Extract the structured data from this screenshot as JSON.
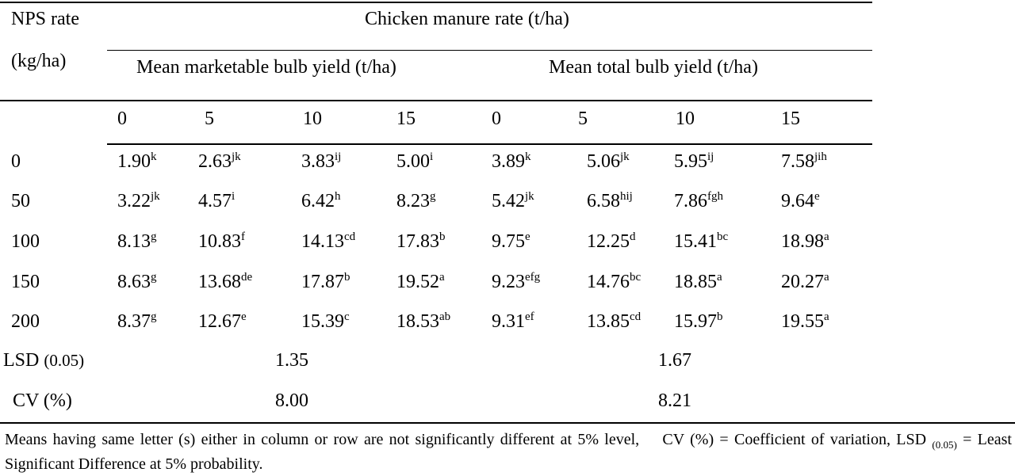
{
  "header": {
    "nps_rate_line1": "NPS rate",
    "nps_rate_line2": "(kg/ha)",
    "chicken_manure": "Chicken manure rate (t/ha)",
    "marketable": "Mean marketable bulb yield (t/ha)",
    "total": "Mean total bulb yield (t/ha)",
    "cm_levels": [
      "0",
      "5",
      "10",
      "15",
      "0",
      "5",
      "10",
      "15"
    ]
  },
  "rows": [
    {
      "nps": "0",
      "cells": [
        {
          "v": "1.90",
          "s": "k"
        },
        {
          "v": "2.63",
          "s": "jk"
        },
        {
          "v": "3.83",
          "s": "ij"
        },
        {
          "v": "5.00",
          "s": "i"
        },
        {
          "v": "3.89",
          "s": "k"
        },
        {
          "v": "5.06",
          "s": "jk"
        },
        {
          "v": "5.95",
          "s": "ij"
        },
        {
          "v": "7.58",
          "s": "jih"
        }
      ]
    },
    {
      "nps": "50",
      "cells": [
        {
          "v": "3.22",
          "s": "jk"
        },
        {
          "v": "4.57",
          "s": "i"
        },
        {
          "v": "6.42",
          "s": "h"
        },
        {
          "v": "8.23",
          "s": "g"
        },
        {
          "v": "5.42",
          "s": "jk"
        },
        {
          "v": "6.58",
          "s": "hij"
        },
        {
          "v": "7.86",
          "s": "fgh"
        },
        {
          "v": "9.64",
          "s": "e"
        }
      ]
    },
    {
      "nps": "100",
      "cells": [
        {
          "v": "8.13",
          "s": "g"
        },
        {
          "v": "10.83",
          "s": "f"
        },
        {
          "v": "14.13",
          "s": "cd"
        },
        {
          "v": "17.83",
          "s": "b"
        },
        {
          "v": "9.75",
          "s": "e"
        },
        {
          "v": "12.25",
          "s": "d"
        },
        {
          "v": "15.41",
          "s": "bc"
        },
        {
          "v": "18.98",
          "s": "a"
        }
      ]
    },
    {
      "nps": "150",
      "cells": [
        {
          "v": "8.63",
          "s": "g"
        },
        {
          "v": "13.68",
          "s": "de"
        },
        {
          "v": "17.87",
          "s": "b"
        },
        {
          "v": "19.52",
          "s": "a"
        },
        {
          "v": "9.23",
          "s": "efg"
        },
        {
          "v": "14.76",
          "s": "bc"
        },
        {
          "v": "18.85",
          "s": "a"
        },
        {
          "v": "20.27",
          "s": "a"
        }
      ]
    },
    {
      "nps": "200",
      "cells": [
        {
          "v": "8.37",
          "s": "g"
        },
        {
          "v": "12.67",
          "s": "e"
        },
        {
          "v": "15.39",
          "s": "c"
        },
        {
          "v": "18.53",
          "s": "ab"
        },
        {
          "v": "9.31",
          "s": "ef"
        },
        {
          "v": "13.85",
          "s": "cd"
        },
        {
          "v": "15.97",
          "s": "b"
        },
        {
          "v": "19.55",
          "s": "a"
        }
      ]
    }
  ],
  "lsd": {
    "label": "LSD",
    "label_sub": "(0.05)",
    "marketable": "1.35",
    "total": "1.67"
  },
  "cv": {
    "label": "CV (%)",
    "marketable": "8.00",
    "total": "8.21"
  },
  "footnote": {
    "part1": "Means having same letter (s) either in column or row are not significantly different at 5% level,    CV (%) = Coefficient of variation, LSD ",
    "sub": "(0.05)",
    "part2": " = Least Significant Difference at 5% probability."
  }
}
